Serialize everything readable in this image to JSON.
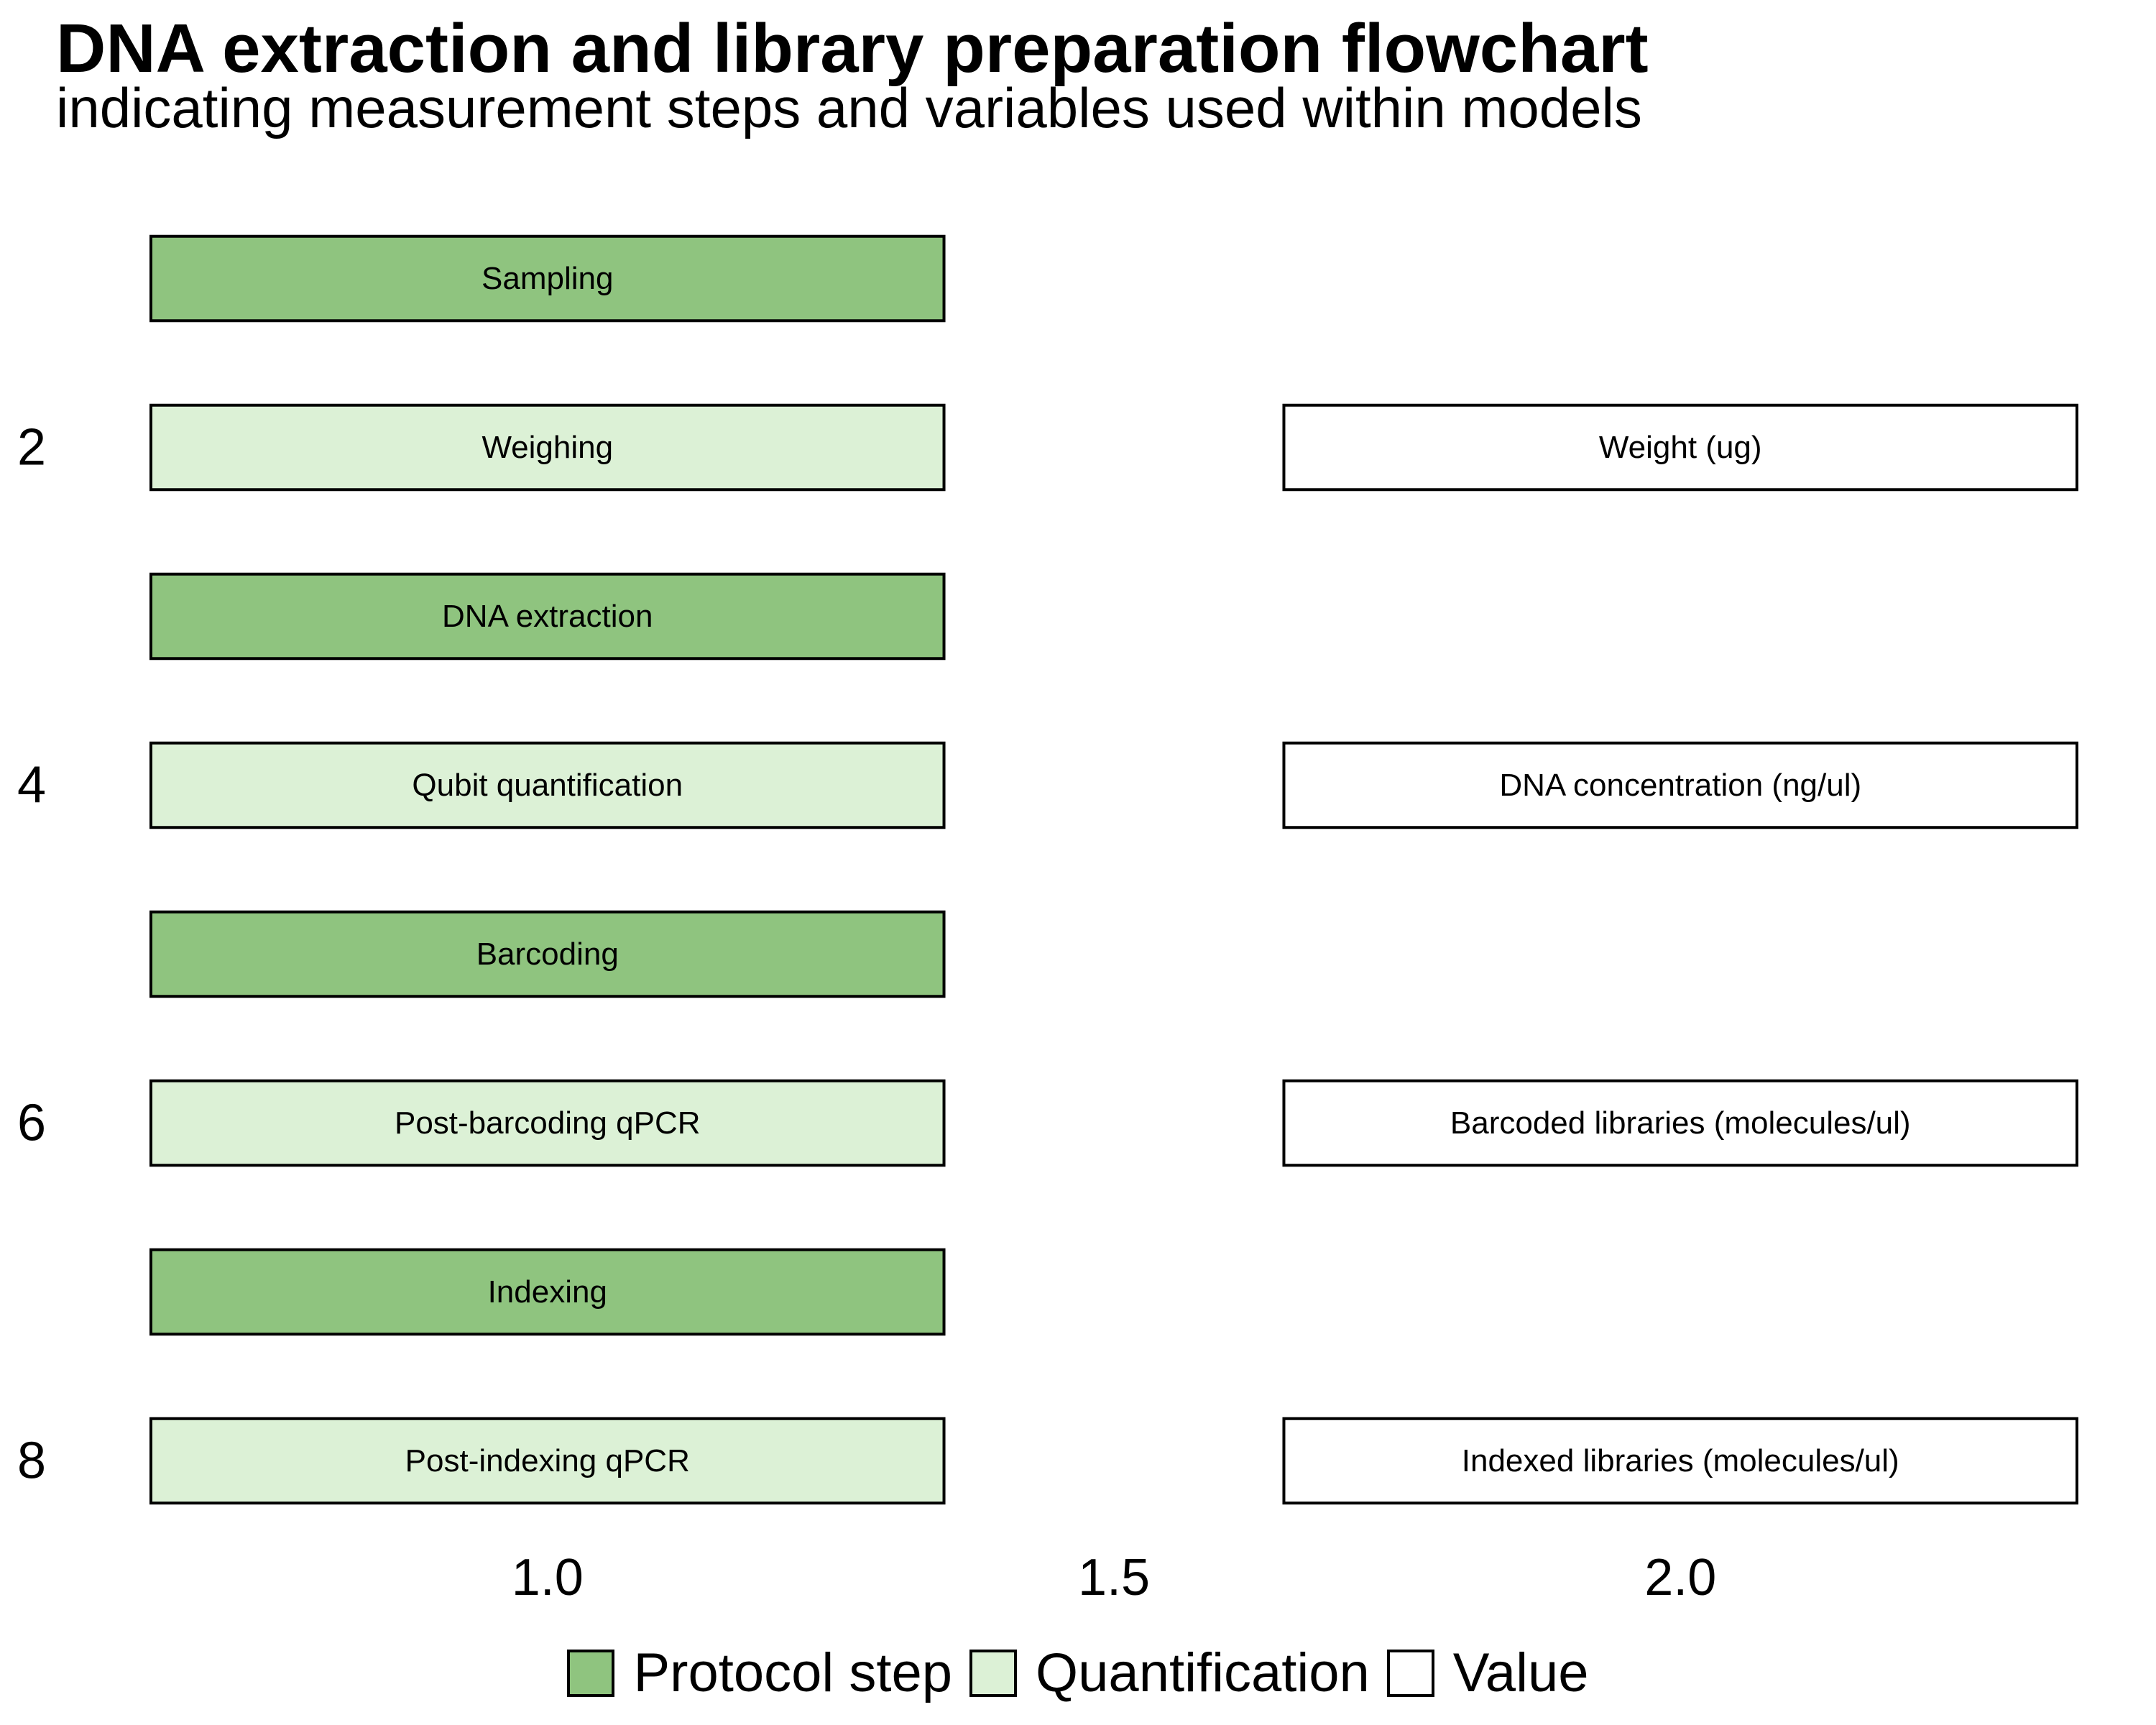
{
  "title": "DNA extraction and library preparation flowchart",
  "subtitle": "indicating measurement steps and variables used within models",
  "colors": {
    "protocol": "#8fc47f",
    "quantification": "#dcf1d6",
    "value": "#ffffff",
    "stroke": "#000000"
  },
  "chart_data": {
    "type": "flowchart",
    "x_axis": {
      "ticks": [
        1.0,
        1.5,
        2.0
      ],
      "tick_labels": [
        "1.0",
        "1.5",
        "2.0"
      ],
      "range": [
        0.65,
        2.35
      ]
    },
    "y_axis": {
      "ticks": [
        2,
        4,
        6,
        8
      ],
      "tick_labels": [
        "2",
        "4",
        "6",
        "8"
      ],
      "range": [
        0.5,
        8.5
      ],
      "reversed": true
    },
    "box_halfwidth": 0.35,
    "box_halfheight": 0.25,
    "boxes": [
      {
        "x": 1.0,
        "y": 1,
        "label": "Sampling",
        "type": "protocol"
      },
      {
        "x": 1.0,
        "y": 2,
        "label": "Weighing",
        "type": "quantification"
      },
      {
        "x": 1.0,
        "y": 3,
        "label": "DNA extraction",
        "type": "protocol"
      },
      {
        "x": 1.0,
        "y": 4,
        "label": "Qubit quantification",
        "type": "quantification"
      },
      {
        "x": 1.0,
        "y": 5,
        "label": "Barcoding",
        "type": "protocol"
      },
      {
        "x": 1.0,
        "y": 6,
        "label": "Post-barcoding qPCR",
        "type": "quantification"
      },
      {
        "x": 1.0,
        "y": 7,
        "label": "Indexing",
        "type": "protocol"
      },
      {
        "x": 1.0,
        "y": 8,
        "label": "Post-indexing qPCR",
        "type": "quantification"
      },
      {
        "x": 2.0,
        "y": 2,
        "label": "Weight (ug)",
        "type": "value"
      },
      {
        "x": 2.0,
        "y": 4,
        "label": "DNA concentration (ng/ul)",
        "type": "value"
      },
      {
        "x": 2.0,
        "y": 6,
        "label": "Barcoded libraries (molecules/ul)",
        "type": "value"
      },
      {
        "x": 2.0,
        "y": 8,
        "label": "Indexed libraries (molecules/ul)",
        "type": "value"
      }
    ]
  },
  "legend": {
    "items": [
      {
        "label": "Protocol step",
        "type": "protocol"
      },
      {
        "label": "Quantification",
        "type": "quantification"
      },
      {
        "label": "Value",
        "type": "value"
      }
    ]
  }
}
